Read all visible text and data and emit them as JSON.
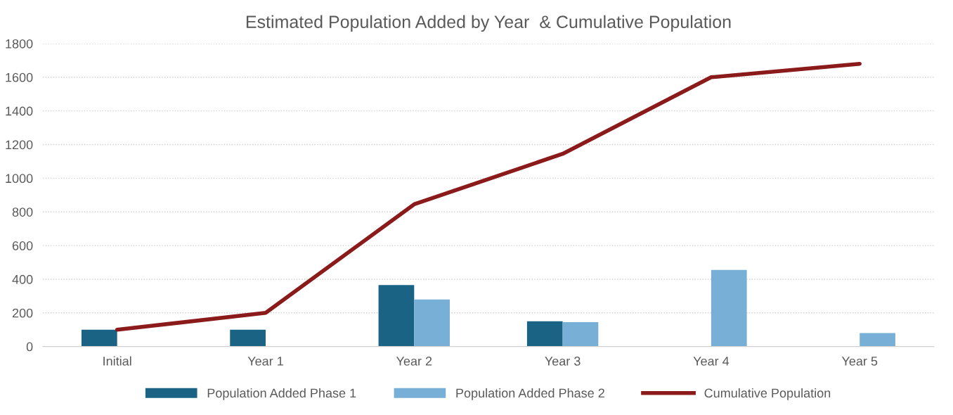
{
  "chart_data": {
    "type": "bar",
    "title": "Estimated Population Added by Year  & Cumulative Population",
    "categories": [
      "Initial",
      "Year 1",
      "Year 2",
      "Year 3",
      "Year 4",
      "Year 5"
    ],
    "series": [
      {
        "name": "Population Added Phase 1",
        "color": "#1a6384",
        "values": [
          100,
          100,
          365,
          150,
          null,
          null
        ]
      },
      {
        "name": "Population Added Phase 2",
        "color": "#78afd6",
        "values": [
          null,
          null,
          280,
          145,
          455,
          80
        ]
      },
      {
        "name": "Cumulative Population",
        "type": "line",
        "color": "#8b1a1a",
        "values": [
          100,
          200,
          845,
          1145,
          1600,
          1680
        ]
      }
    ],
    "ylim": [
      0,
      1800
    ],
    "yticks": [
      0,
      200,
      400,
      600,
      800,
      1000,
      1200,
      1400,
      1600,
      1800
    ],
    "grid": "y",
    "legend": "bottom",
    "line_style": "solid",
    "marker": "none"
  }
}
